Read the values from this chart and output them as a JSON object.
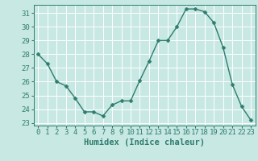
{
  "x": [
    0,
    1,
    2,
    3,
    4,
    5,
    6,
    7,
    8,
    9,
    10,
    11,
    12,
    13,
    14,
    15,
    16,
    17,
    18,
    19,
    20,
    21,
    22,
    23
  ],
  "y": [
    28.0,
    27.3,
    26.0,
    25.7,
    24.8,
    23.8,
    23.8,
    23.5,
    24.3,
    24.6,
    24.6,
    26.1,
    27.5,
    29.0,
    29.0,
    30.0,
    31.3,
    31.3,
    31.1,
    30.3,
    28.5,
    25.8,
    24.2,
    23.2
  ],
  "xlabel": "Humidex (Indice chaleur)",
  "ylim": [
    22.8,
    31.6
  ],
  "xlim": [
    -0.5,
    23.5
  ],
  "yticks": [
    23,
    24,
    25,
    26,
    27,
    28,
    29,
    30,
    31
  ],
  "xticks": [
    0,
    1,
    2,
    3,
    4,
    5,
    6,
    7,
    8,
    9,
    10,
    11,
    12,
    13,
    14,
    15,
    16,
    17,
    18,
    19,
    20,
    21,
    22,
    23
  ],
  "line_color": "#2e7d6e",
  "marker_color": "#2e7d6e",
  "bg_color": "#c8e8e4",
  "grid_color": "#ffffff",
  "tick_label_color": "#2e7d6e",
  "axis_color": "#2e7d6e",
  "xlabel_color": "#2e7d6e",
  "line_width": 1.0,
  "marker_size": 2.5,
  "xlabel_fontsize": 7.5,
  "tick_fontsize": 6.5
}
